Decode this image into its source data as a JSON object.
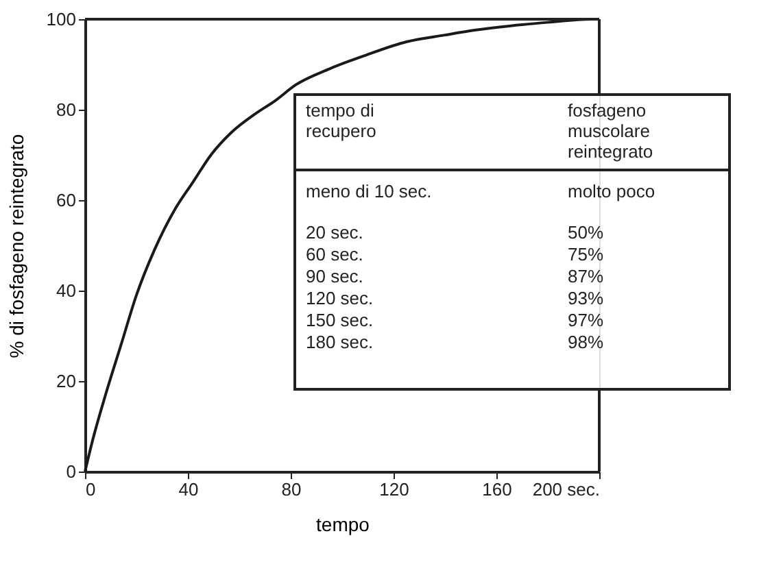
{
  "chart_data": {
    "type": "line",
    "xlabel": "tempo",
    "ylabel": "% di fosfageno reintegrato",
    "x": [
      0,
      3,
      8,
      14,
      20,
      27,
      35,
      42,
      49,
      57,
      66,
      74,
      82,
      95,
      109,
      125,
      140,
      152,
      165,
      180,
      197,
      200
    ],
    "series": [
      {
        "color": "#1a1a1a",
        "values": [
          0,
          7,
          17,
          28,
          39,
          49,
          58,
          64,
          70,
          75,
          79,
          82,
          85.5,
          89,
          92,
          95,
          96.5,
          97.6,
          98.5,
          99.3,
          100,
          100
        ]
      }
    ],
    "xlim": [
      0,
      200
    ],
    "xticks": [
      0,
      40,
      80,
      120,
      160,
      {
        "value": 200,
        "label": "200 sec."
      }
    ],
    "ylim": [
      0,
      100
    ],
    "yticks": [
      0,
      20,
      40,
      60,
      80,
      100
    ],
    "grid": false,
    "marker": "none",
    "line_style": "solid",
    "annotations": [
      "tempo di\nrecupero",
      "fosfageno\nmuscolare\nreintegrato",
      "meno di 10 sec.",
      "molto poco",
      "20 sec.",
      "50%",
      "60 sec.",
      "75%",
      "90 sec.",
      "87%",
      "120 sec.",
      "93%",
      "150 sec.",
      "97%",
      "180 sec.",
      "98%"
    ]
  }
}
